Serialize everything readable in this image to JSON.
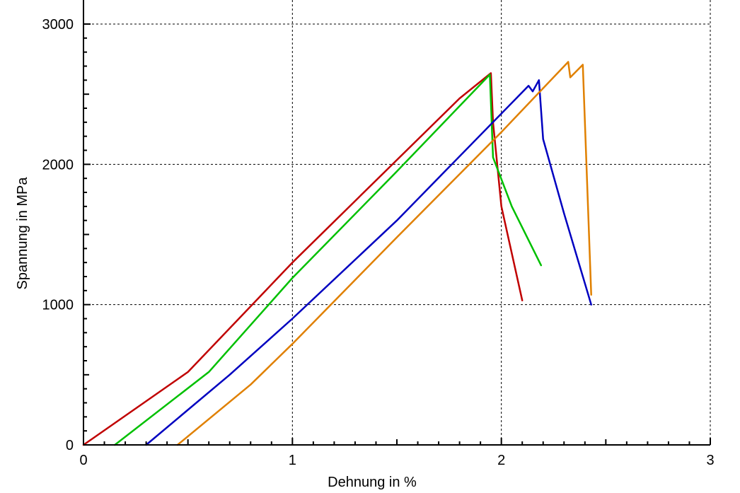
{
  "chart_data": {
    "type": "line",
    "title": "",
    "xlabel": "Dehnung in %",
    "ylabel": "Spannung in MPa",
    "xlim": [
      0,
      3
    ],
    "ylim": [
      0,
      3000
    ],
    "x_ticks": [
      0,
      1,
      2,
      3
    ],
    "y_ticks": [
      0,
      1000,
      2000,
      3000
    ],
    "x_tick_labels": [
      "0",
      "1",
      "2",
      "3"
    ],
    "y_tick_labels": [
      "0",
      "1000",
      "2000",
      "3000"
    ],
    "grid": true,
    "legend": false,
    "series": [
      {
        "color": "#c00000",
        "points": [
          [
            0.0,
            0
          ],
          [
            0.5,
            520
          ],
          [
            1.0,
            1300
          ],
          [
            1.8,
            2470
          ],
          [
            1.95,
            2650
          ],
          [
            1.96,
            2300
          ],
          [
            2.0,
            1700
          ],
          [
            2.1,
            1030
          ]
        ]
      },
      {
        "color": "#00c000",
        "points": [
          [
            0.15,
            0
          ],
          [
            0.6,
            520
          ],
          [
            1.0,
            1190
          ],
          [
            1.5,
            1950
          ],
          [
            1.945,
            2640
          ],
          [
            1.96,
            2050
          ],
          [
            2.05,
            1700
          ],
          [
            2.19,
            1280
          ]
        ]
      },
      {
        "color": "#0000c0",
        "points": [
          [
            0.3,
            0
          ],
          [
            0.7,
            500
          ],
          [
            1.0,
            900
          ],
          [
            1.5,
            1600
          ],
          [
            2.13,
            2560
          ],
          [
            2.15,
            2520
          ],
          [
            2.18,
            2600
          ],
          [
            2.2,
            2180
          ],
          [
            2.3,
            1650
          ],
          [
            2.43,
            1000
          ]
        ]
      },
      {
        "color": "#e08000",
        "points": [
          [
            0.45,
            0
          ],
          [
            0.8,
            430
          ],
          [
            1.0,
            720
          ],
          [
            1.5,
            1480
          ],
          [
            2.0,
            2230
          ],
          [
            2.32,
            2730
          ],
          [
            2.33,
            2620
          ],
          [
            2.39,
            2710
          ],
          [
            2.43,
            1070
          ]
        ]
      }
    ]
  }
}
